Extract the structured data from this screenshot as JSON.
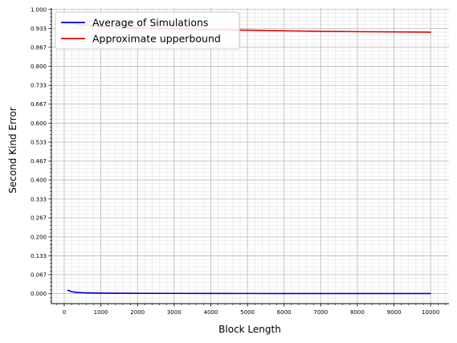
{
  "chart_data": {
    "type": "line",
    "title": "",
    "xlabel": "Block Length",
    "ylabel": "Second Kind Error",
    "xlim": [
      -350,
      10500
    ],
    "ylim": [
      -0.035,
      1.005
    ],
    "xticks": [
      0,
      1000,
      2000,
      3000,
      4000,
      5000,
      6000,
      7000,
      8000,
      9000,
      10000
    ],
    "xtick_labels": [
      "0",
      "1000",
      "2000",
      "3000",
      "4000",
      "5000",
      "6000",
      "7000",
      "8000",
      "9000",
      "10000"
    ],
    "yticks": [
      0.0,
      0.067,
      0.133,
      0.2,
      0.267,
      0.333,
      0.4,
      0.467,
      0.533,
      0.6,
      0.667,
      0.733,
      0.8,
      0.867,
      0.933,
      1.0
    ],
    "ytick_labels": [
      "0.000",
      "0.067",
      "0.133",
      "0.200",
      "0.267",
      "0.333",
      "0.400",
      "0.467",
      "0.533",
      "0.600",
      "0.667",
      "0.733",
      "0.800",
      "0.867",
      "0.933",
      "1.000"
    ],
    "grid": true,
    "minor_grid": true,
    "legend_position": "top-left",
    "series": [
      {
        "name": "Average of Simulations",
        "color": "#0000cc",
        "x": [
          100,
          200,
          300,
          400,
          500,
          600,
          800,
          1000,
          1500,
          2000,
          3000,
          4000,
          5000,
          6000,
          7000,
          8000,
          9000,
          10000
        ],
        "y": [
          0.012,
          0.007,
          0.005,
          0.004,
          0.0035,
          0.003,
          0.0025,
          0.002,
          0.0015,
          0.0012,
          0.001,
          0.0008,
          0.0007,
          0.0006,
          0.0005,
          0.0005,
          0.0004,
          0.0004
        ]
      },
      {
        "name": "Approximate upperbound",
        "color": "#ee0000",
        "x": [
          100,
          500,
          1000,
          2000,
          3000,
          4000,
          5000,
          6000,
          7000,
          8000,
          9000,
          10000
        ],
        "y": [
          0.955,
          0.945,
          0.94,
          0.935,
          0.932,
          0.929,
          0.927,
          0.925,
          0.923,
          0.922,
          0.921,
          0.92
        ]
      }
    ]
  }
}
